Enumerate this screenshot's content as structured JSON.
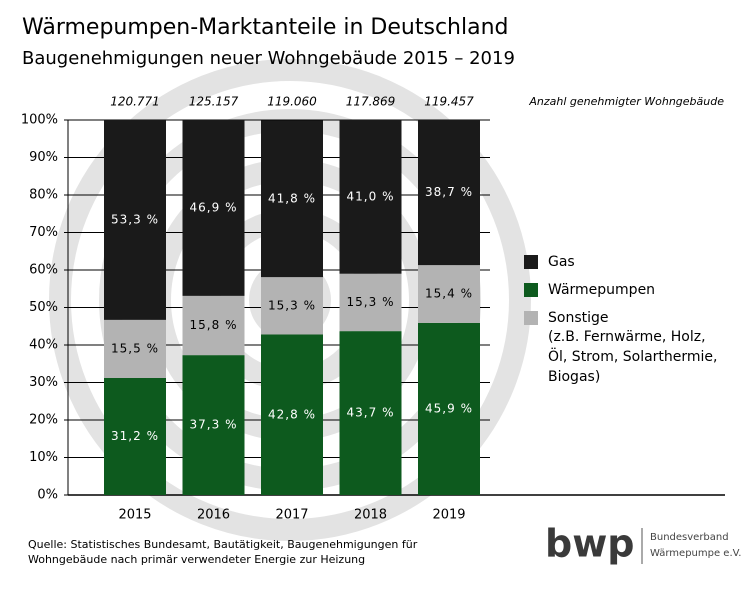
{
  "chart_data": {
    "type": "stacked_bar",
    "title": "Wärmepumpen-Marktanteile in Deutschland",
    "subtitle": "Baugenehmigungen neuer Wohngebäude 2015 – 2019",
    "categories": [
      "2015",
      "2016",
      "2017",
      "2018",
      "2019"
    ],
    "series": [
      {
        "name": "Wärmepumpen",
        "color": "#0d5a1e",
        "label_color": "#ffffff",
        "values": [
          31.2,
          37.3,
          42.8,
          43.7,
          45.9
        ],
        "value_labels": [
          "31,2 %",
          "37,3 %",
          "42,8 %",
          "43,7 %",
          "45,9 %"
        ]
      },
      {
        "name": "Sonstige",
        "description_lines": [
          "(z.B. Fernwärme, Holz,",
          "Öl, Strom, Solarthermie,",
          "Biogas)"
        ],
        "color": "#b3b3b3",
        "label_color": "#000000",
        "values": [
          15.5,
          15.8,
          15.3,
          15.3,
          15.4
        ],
        "value_labels": [
          "15,5 %",
          "15,8 %",
          "15,3 %",
          "15,3 %",
          "15,4 %"
        ]
      },
      {
        "name": "Gas",
        "color": "#1a1a1a",
        "label_color": "#ffffff",
        "values": [
          53.3,
          46.9,
          41.8,
          41.0,
          38.7
        ],
        "value_labels": [
          "53,3 %",
          "46,9 %",
          "41,8 %",
          "41,0 %",
          "38,7 %"
        ]
      }
    ],
    "totals": {
      "label": "Anzahl genehmigter Wohngebäude",
      "values": [
        120771,
        125157,
        119060,
        117869,
        119457
      ],
      "value_labels": [
        "120.771",
        "125.157",
        "119.060",
        "117.869",
        "119.457"
      ]
    },
    "ylim": [
      0,
      100
    ],
    "yticks": [
      {
        "value": 0,
        "label": "0%"
      },
      {
        "value": 10,
        "label": "10%"
      },
      {
        "value": 20,
        "label": "20%"
      },
      {
        "value": 30,
        "label": "30%"
      },
      {
        "value": 40,
        "label": "40%"
      },
      {
        "value": 50,
        "label": "50%"
      },
      {
        "value": 60,
        "label": "60%"
      },
      {
        "value": 70,
        "label": "70%"
      },
      {
        "value": 80,
        "label": "80%"
      },
      {
        "value": 90,
        "label": "90%"
      },
      {
        "value": 100,
        "label": "100%"
      }
    ],
    "grid": true,
    "legend_order": [
      2,
      0,
      1
    ],
    "source_lines": [
      "Quelle: Statistisches Bundesamt, Bautätigkeit, Baugenehmigungen für",
      "Wohngebäude nach primär verwendeter Energie zur Heizung"
    ],
    "logo": {
      "text": "bwp",
      "lines": [
        "Bundesverband",
        "Wärmepumpe e.V."
      ]
    }
  }
}
